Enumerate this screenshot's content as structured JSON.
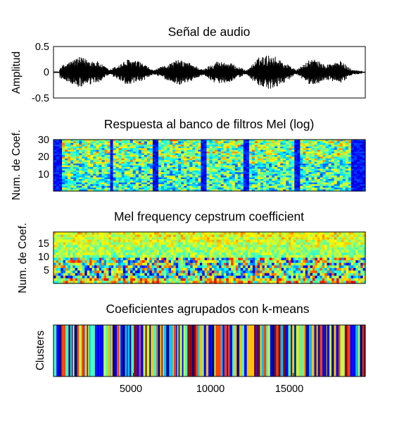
{
  "chart_data": [
    {
      "type": "line",
      "title": "Señal de audio",
      "ylabel": "Amplitud",
      "xlabel": "",
      "ylim": [
        -0.5,
        0.5
      ],
      "yticks": [
        "0.5",
        "0",
        "-0.5"
      ],
      "ytick_values": [
        0.5,
        0,
        -0.5
      ],
      "series_color": "#000000",
      "envelope_x_sec": [
        0.0,
        0.08,
        0.14,
        0.18,
        0.24,
        0.28,
        0.32,
        0.4,
        0.44,
        0.48,
        0.52,
        0.56,
        0.62,
        0.66,
        0.7,
        0.74,
        0.78,
        0.83,
        0.87,
        0.92,
        0.96,
        1.0
      ],
      "envelope_amp": [
        0.05,
        0.3,
        0.22,
        0.05,
        0.26,
        0.2,
        0.04,
        0.25,
        0.18,
        0.05,
        0.22,
        0.2,
        0.04,
        0.3,
        0.35,
        0.2,
        0.05,
        0.28,
        0.15,
        0.22,
        0.05,
        0.02
      ]
    },
    {
      "type": "heatmap",
      "title": "Respuesta al banco de filtros Mel (log)",
      "ylabel": "Num. de Coef.",
      "ylim": [
        0,
        30
      ],
      "yticks": [
        "30",
        "20",
        "10"
      ],
      "ytick_values": [
        30,
        20,
        10
      ],
      "colormap": "jet",
      "rows": 30
    },
    {
      "type": "heatmap",
      "title": "Mel frequency cepstrum coefficient",
      "ylabel": "Num. de Coef.",
      "ylim": [
        0,
        20
      ],
      "yticks": [
        "15",
        "10",
        "5"
      ],
      "ytick_values": [
        15,
        10,
        5
      ],
      "colormap": "jet",
      "rows": 20
    },
    {
      "type": "heatmap",
      "title": "Coeficientes agrupados con k-means",
      "ylabel": "Clusters",
      "xlim": [
        0,
        19500
      ],
      "xticks": [
        "5000",
        "10000",
        "15000"
      ],
      "xtick_values": [
        5000,
        10000,
        15000
      ],
      "colormap": "jet",
      "palette": [
        "#00008f",
        "#0000ff",
        "#00bfff",
        "#40ffbf",
        "#bfff40",
        "#ffbf00",
        "#ff4000",
        "#8f0000"
      ]
    }
  ]
}
